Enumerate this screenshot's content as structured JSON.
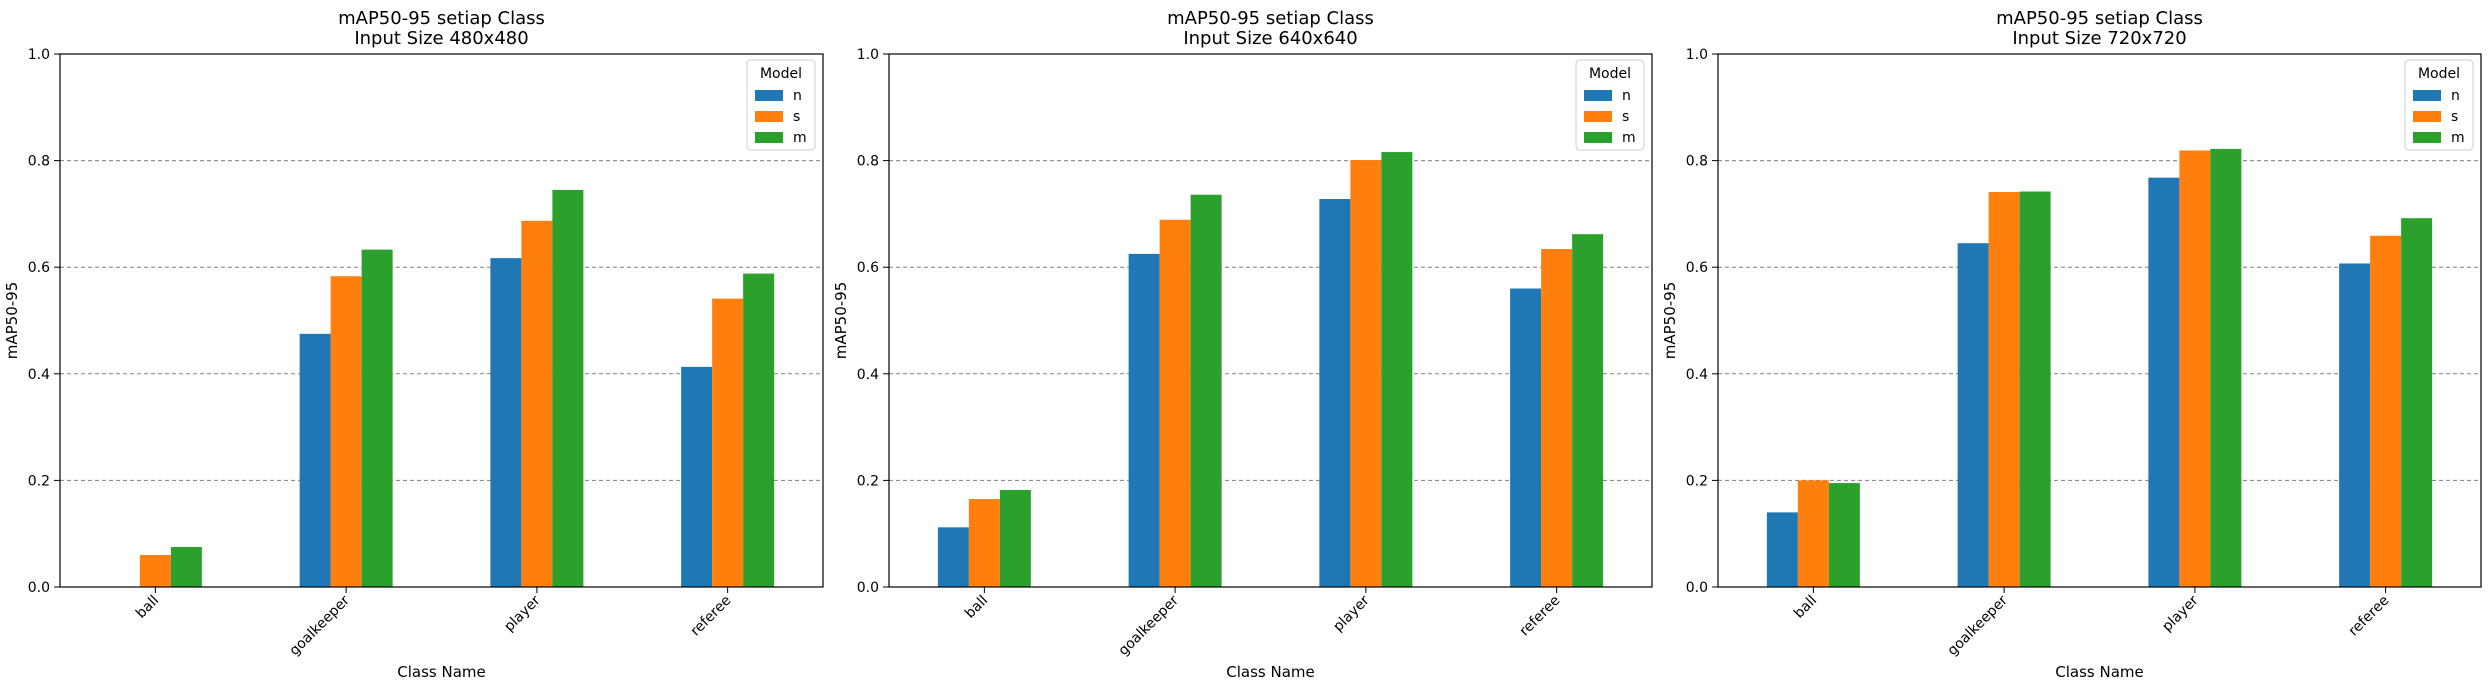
{
  "chart_data": [
    {
      "type": "bar",
      "title": "mAP50-95 setiap Class",
      "subtitle": "Input Size 480x480",
      "xlabel": "Class Name",
      "ylabel": "mAP50-95",
      "ylim": [
        0,
        1.0
      ],
      "yticks": [
        "0.0",
        "0.2",
        "0.4",
        "0.6",
        "0.8",
        "1.0"
      ],
      "grid": "horizontal dashed",
      "categories": [
        "ball",
        "goalkeeper",
        "player",
        "referee"
      ],
      "legend_title": "Model",
      "legend_position": "top-right",
      "series": [
        {
          "name": "n",
          "color": "#1f77b4",
          "values": [
            0.0,
            0.475,
            0.617,
            0.413
          ]
        },
        {
          "name": "s",
          "color": "#ff7f0e",
          "values": [
            0.06,
            0.583,
            0.687,
            0.541
          ]
        },
        {
          "name": "m",
          "color": "#2ca02c",
          "values": [
            0.075,
            0.633,
            0.745,
            0.588
          ]
        }
      ]
    },
    {
      "type": "bar",
      "title": "mAP50-95 setiap Class",
      "subtitle": "Input Size 640x640",
      "xlabel": "Class Name",
      "ylabel": "mAP50-95",
      "ylim": [
        0,
        1.0
      ],
      "yticks": [
        "0.0",
        "0.2",
        "0.4",
        "0.6",
        "0.8",
        "1.0"
      ],
      "grid": "horizontal dashed",
      "categories": [
        "ball",
        "goalkeeper",
        "player",
        "referee"
      ],
      "legend_title": "Model",
      "legend_position": "top-right",
      "series": [
        {
          "name": "n",
          "color": "#1f77b4",
          "values": [
            0.112,
            0.625,
            0.728,
            0.56
          ]
        },
        {
          "name": "s",
          "color": "#ff7f0e",
          "values": [
            0.165,
            0.689,
            0.801,
            0.634
          ]
        },
        {
          "name": "m",
          "color": "#2ca02c",
          "values": [
            0.182,
            0.736,
            0.816,
            0.662
          ]
        }
      ]
    },
    {
      "type": "bar",
      "title": "mAP50-95 setiap Class",
      "subtitle": "Input Size 720x720",
      "xlabel": "Class Name",
      "ylabel": "mAP50-95",
      "ylim": [
        0,
        1.0
      ],
      "yticks": [
        "0.0",
        "0.2",
        "0.4",
        "0.6",
        "0.8",
        "1.0"
      ],
      "grid": "horizontal dashed",
      "categories": [
        "ball",
        "goalkeeper",
        "player",
        "referee"
      ],
      "legend_title": "Model",
      "legend_position": "top-right",
      "series": [
        {
          "name": "n",
          "color": "#1f77b4",
          "values": [
            0.14,
            0.645,
            0.768,
            0.607
          ]
        },
        {
          "name": "s",
          "color": "#ff7f0e",
          "values": [
            0.2,
            0.741,
            0.819,
            0.659
          ]
        },
        {
          "name": "m",
          "color": "#2ca02c",
          "values": [
            0.195,
            0.742,
            0.822,
            0.692
          ]
        }
      ]
    }
  ]
}
